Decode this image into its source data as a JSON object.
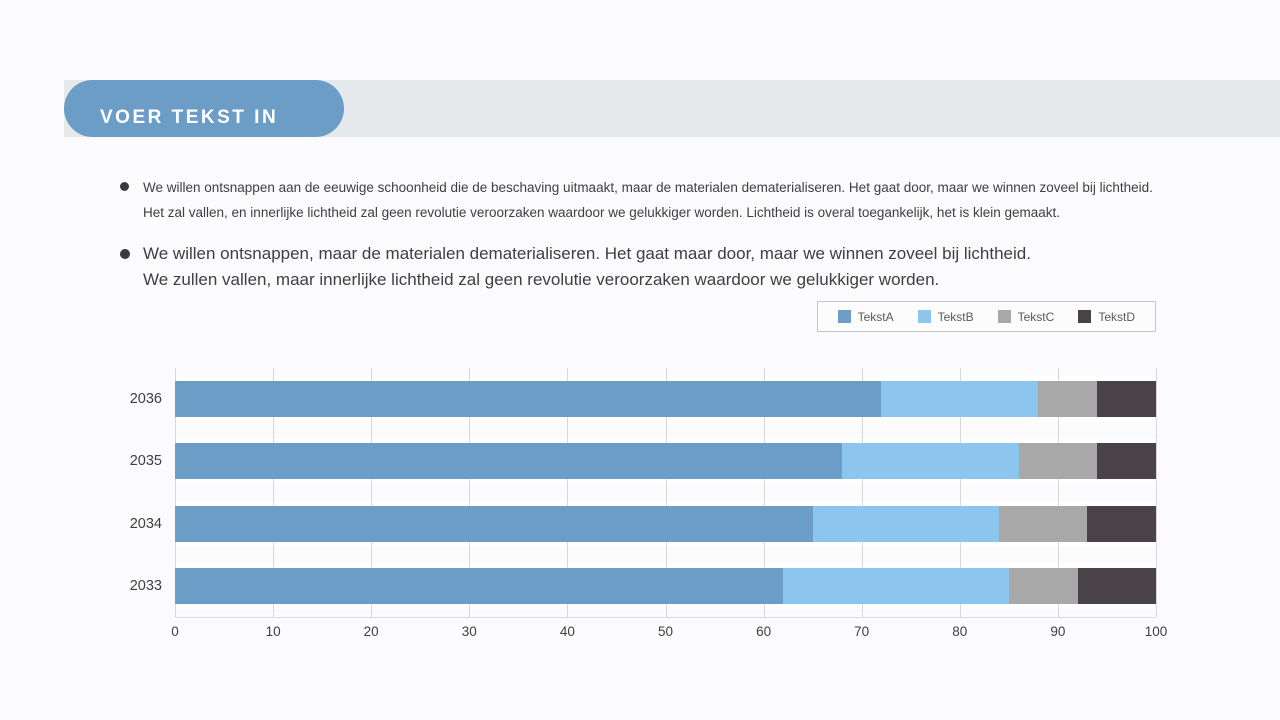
{
  "header": {
    "title": "VOER TEKST IN",
    "badge_color": "#6b9dc6",
    "band_color": "#e6e9ec"
  },
  "bullets": [
    {
      "lines": [
        "We willen ontsnappen aan de eeuwige schoonheid die de beschaving uitmaakt, maar de materialen dematerialiseren. Het gaat door, maar we winnen zoveel bij lichtheid.",
        "Het zal vallen, en innerlijke lichtheid zal geen revolutie veroorzaken waardoor we gelukkiger worden. Lichtheid is overal toegankelijk, het is klein gemaakt."
      ]
    },
    {
      "lines": [
        "We willen ontsnappen, maar de materialen dematerialiseren. Het gaat maar door, maar we winnen zoveel bij lichtheid.",
        "We zullen vallen, maar innerlijke lichtheid zal geen revolutie veroorzaken waardoor we gelukkiger worden."
      ]
    }
  ],
  "chart_data": {
    "type": "bar",
    "orientation": "horizontal",
    "stacked": true,
    "title": "",
    "xlabel": "",
    "ylabel": "",
    "grid": true,
    "legend_position": "top-right",
    "categories": [
      "2036",
      "2035",
      "2034",
      "2033"
    ],
    "series": [
      {
        "name": "TekstA",
        "color": "#6b9dc6",
        "values": [
          72,
          68,
          65,
          62
        ]
      },
      {
        "name": "TekstB",
        "color": "#8cc6ee",
        "values": [
          16,
          18,
          19,
          23
        ]
      },
      {
        "name": "TekstC",
        "color": "#a8a8a8",
        "values": [
          6,
          8,
          9,
          7
        ]
      },
      {
        "name": "TekstD",
        "color": "#4a4249",
        "values": [
          6,
          6,
          7,
          8
        ]
      }
    ],
    "xlim": [
      0,
      100
    ],
    "xticks": [
      0,
      10,
      20,
      30,
      40,
      50,
      60,
      70,
      80,
      90,
      100
    ]
  }
}
